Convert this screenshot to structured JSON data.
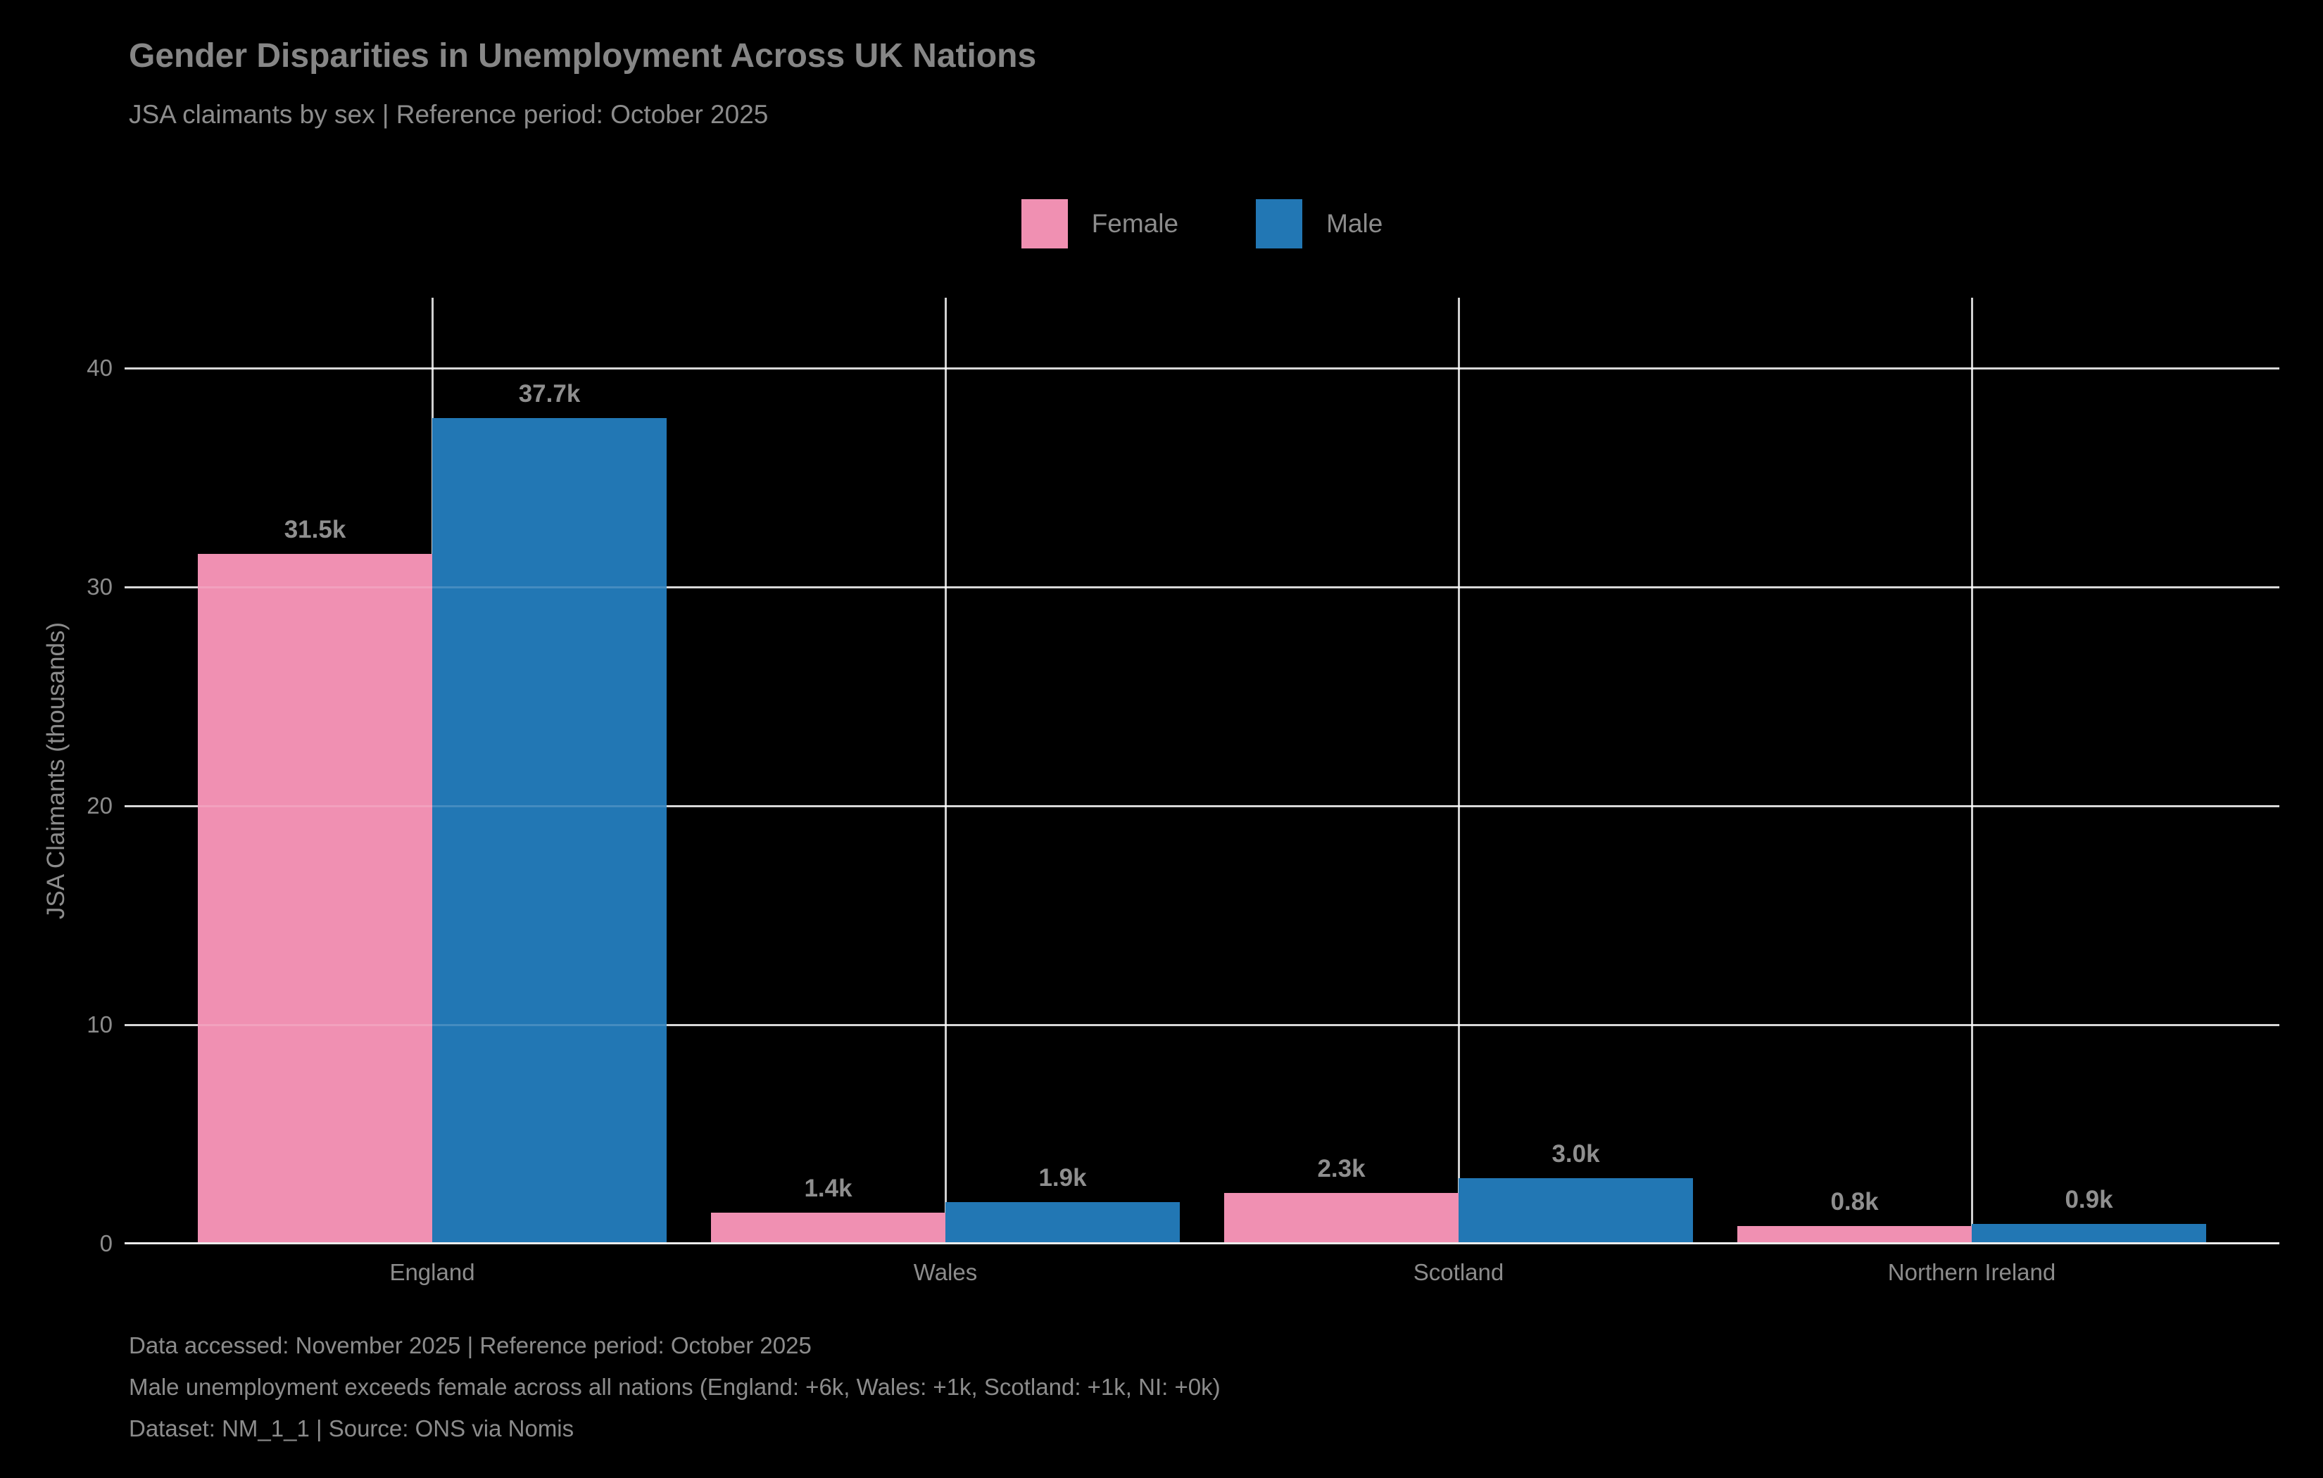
{
  "header": {
    "title": "Gender Disparities in Unemployment Across UK Nations",
    "subtitle": "JSA claimants by sex | Reference period: October 2025"
  },
  "footer": {
    "line1": "Data accessed: November 2025 | Reference period: October 2025",
    "line2": "Male unemployment exceeds female across all nations (England: +6k, Wales: +1k, Scotland: +1k, NI: +0k)",
    "line3": "Dataset: NM_1_1 | Source: ONS via Nomis"
  },
  "chart_data": {
    "type": "bar",
    "title": "Gender Disparities in Unemployment Across UK Nations",
    "subtitle": "JSA claimants by sex | Reference period: October 2025",
    "categories": [
      "England",
      "Wales",
      "Scotland",
      "Northern Ireland"
    ],
    "series": [
      {
        "name": "Female",
        "color": "#f090b2",
        "values": [
          31.5,
          1.4,
          2.3,
          0.8
        ],
        "labels": [
          "31.5k",
          "1.4k",
          "2.3k",
          "0.8k"
        ]
      },
      {
        "name": "Male",
        "color": "#2277b4",
        "values": [
          37.7,
          1.9,
          3.0,
          0.9
        ],
        "labels": [
          "37.7k",
          "1.9k",
          "3.0k",
          "0.9k"
        ]
      }
    ],
    "xlabel": "",
    "ylabel": "JSA Claimants (thousands)",
    "ylim": [
      0,
      43.2
    ],
    "yticks": [
      0,
      10,
      20,
      30,
      40
    ],
    "grid": true,
    "legend_position": "top-center",
    "background_color": "#000000",
    "text_color": "#8c8c8c",
    "gridline_color": "#ffffff",
    "axis_line_color": "#ececec"
  }
}
